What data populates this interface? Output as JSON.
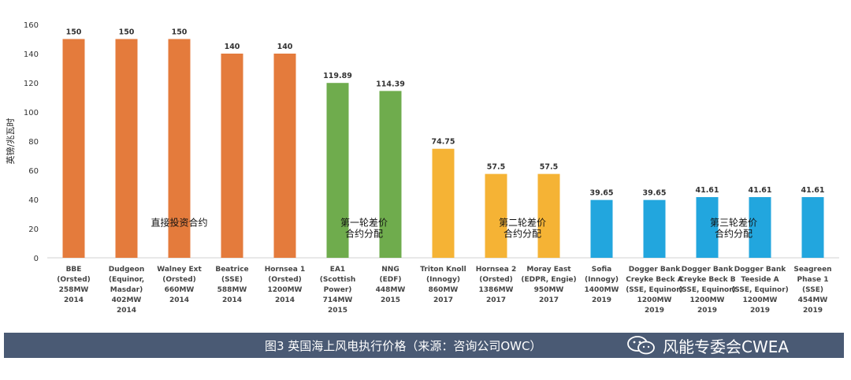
{
  "chart_data": {
    "type": "bar",
    "ylabel": "英镑/兆瓦时",
    "ylim": [
      0,
      160
    ],
    "yticks": [
      0,
      20,
      40,
      60,
      80,
      100,
      120,
      140,
      160
    ],
    "grid": false,
    "bars": [
      {
        "label": [
          "BBE",
          "(Orsted)",
          "258MW",
          "2014"
        ],
        "value": 150,
        "value_label": "150",
        "color": "#e47b3c"
      },
      {
        "label": [
          "Dudgeon",
          "(Equinor,",
          "Masdar)",
          "402MW",
          "2014"
        ],
        "value": 150,
        "value_label": "150",
        "color": "#e47b3c"
      },
      {
        "label": [
          "Walney Ext",
          "(Orsted)",
          "660MW",
          "2014"
        ],
        "value": 150,
        "value_label": "150",
        "color": "#e47b3c"
      },
      {
        "label": [
          "Beatrice",
          "(SSE)",
          "588MW",
          "2014"
        ],
        "value": 140,
        "value_label": "140",
        "color": "#e47b3c"
      },
      {
        "label": [
          "Hornsea 1",
          "(Orsted)",
          "1200MW",
          "2014"
        ],
        "value": 140,
        "value_label": "140",
        "color": "#e47b3c"
      },
      {
        "label": [
          "EA1",
          "(Scottish",
          "Power)",
          "714MW",
          "2015"
        ],
        "value": 119.89,
        "value_label": "119.89",
        "color": "#6fac4d"
      },
      {
        "label": [
          "NNG",
          "(EDF)",
          "448MW",
          "2015"
        ],
        "value": 114.39,
        "value_label": "114.39",
        "color": "#6fac4d"
      },
      {
        "label": [
          "Triton Knoll",
          "(Innogy)",
          "860MW",
          "2017"
        ],
        "value": 74.75,
        "value_label": "74.75",
        "color": "#f5b335"
      },
      {
        "label": [
          "Hornsea 2",
          "(Orsted)",
          "1386MW",
          "2017"
        ],
        "value": 57.5,
        "value_label": "57.5",
        "color": "#f5b335"
      },
      {
        "label": [
          "Moray East",
          "(EDPR, Engie)",
          "950MW",
          "2017"
        ],
        "value": 57.5,
        "value_label": "57.5",
        "color": "#f5b335"
      },
      {
        "label": [
          "Sofia",
          "(Innogy)",
          "1400MW",
          "2019"
        ],
        "value": 39.65,
        "value_label": "39.65",
        "color": "#22a6de"
      },
      {
        "label": [
          "Dogger Bank",
          "Creyke Beck A",
          "(SSE, Equinor)",
          "1200MW",
          "2019"
        ],
        "value": 39.65,
        "value_label": "39.65",
        "color": "#22a6de"
      },
      {
        "label": [
          "Dogger Bank",
          "Creyke Beck B",
          "(SSE, Equinor)",
          "1200MW",
          "2019"
        ],
        "value": 41.61,
        "value_label": "41.61",
        "color": "#22a6de"
      },
      {
        "label": [
          "Dogger Bank",
          "Teeside A",
          "(SSE, Equinor)",
          "1200MW",
          "2019"
        ],
        "value": 41.61,
        "value_label": "41.61",
        "color": "#22a6de"
      },
      {
        "label": [
          "Seagreen",
          "Phase 1",
          "(SSE)",
          "454MW",
          "2019"
        ],
        "value": 41.61,
        "value_label": "41.61",
        "color": "#22a6de"
      }
    ],
    "annotations": [
      {
        "lines": [
          "直接投资合约"
        ],
        "x_bar": 2,
        "y_value": 24
      },
      {
        "lines": [
          "第一轮差价",
          "合约分配"
        ],
        "x_bar": 5.5,
        "y_value": 24
      },
      {
        "lines": [
          "第二轮差价",
          "合约分配"
        ],
        "x_bar": 8.5,
        "y_value": 24
      },
      {
        "lines": [
          "第三轮差价",
          "合约分配"
        ],
        "x_bar": 12.5,
        "y_value": 24
      }
    ]
  },
  "caption": "图3 英国海上风电执行价格（来源：咨询公司OWC）",
  "brand": {
    "text": "风能专委会CWEA",
    "icon": "wechat-icon"
  }
}
